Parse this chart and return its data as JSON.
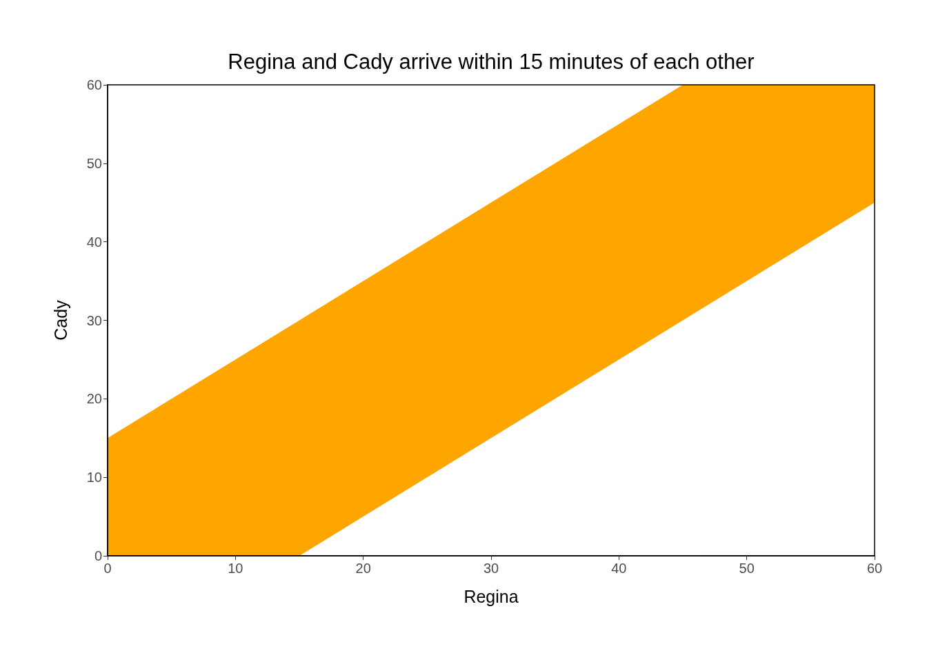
{
  "chart_data": {
    "type": "area",
    "title": "Regina and Cady arrive within 15 minutes of each other",
    "xlabel": "Regina",
    "ylabel": "Cady",
    "series": [
      {
        "color": "#ffa500",
        "x": [
          0,
          15,
          45,
          60
        ],
        "values": [
          15,
          30,
          60,
          60
        ]
      },
      {
        "color": "#ffffff",
        "x": [
          0,
          15,
          45,
          60
        ],
        "values": [
          0,
          0,
          30,
          45
        ]
      }
    ],
    "xlim": [
      0,
      60
    ],
    "xticks": [
      0,
      10,
      20,
      30,
      40,
      50,
      60
    ],
    "ylim": [
      0,
      60
    ],
    "yticks": [
      0,
      10,
      20,
      30,
      40,
      50,
      60
    ],
    "grid": false
  }
}
